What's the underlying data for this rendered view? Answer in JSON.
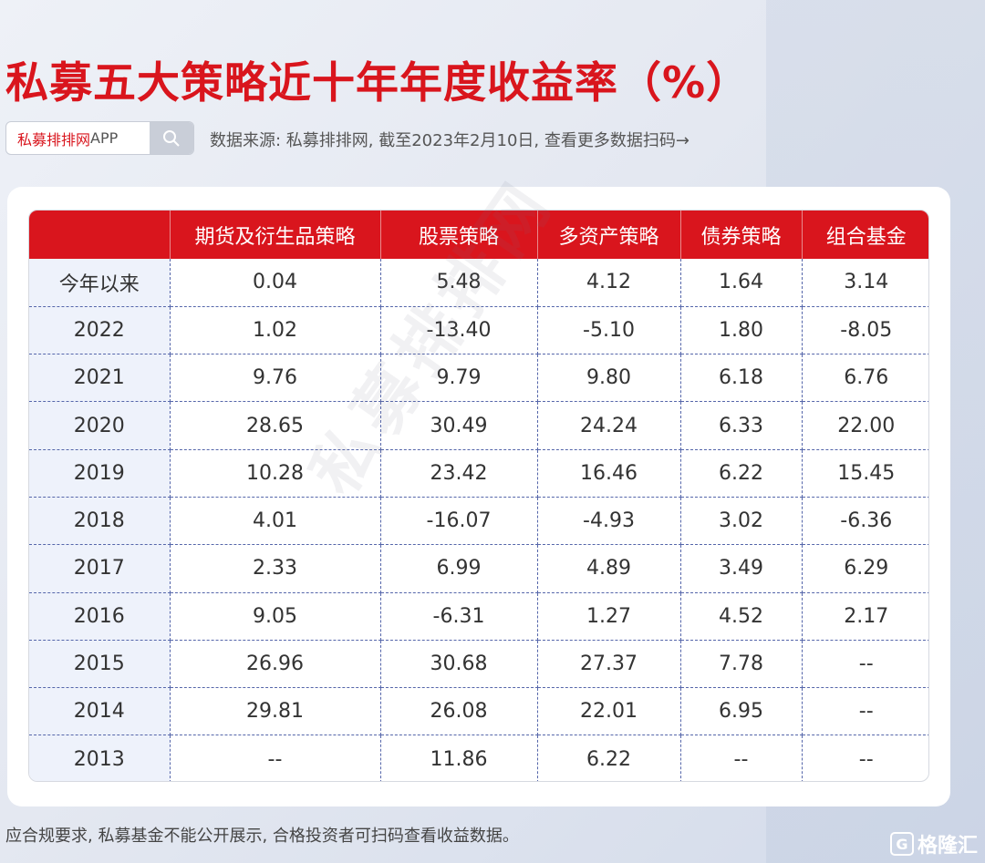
{
  "title": "私募五大策略近十年年度收益率（%）",
  "search": {
    "brand": "私募排排网",
    "app": "APP"
  },
  "source_text": "数据来源: 私募排排网, 截至2023年2月10日, 查看更多数据扫码→",
  "table": {
    "headers": [
      "",
      "期货及衍生品策略",
      "股票策略",
      "多资产策略",
      "债券策略",
      "组合基金"
    ],
    "rows": [
      [
        "今年以来",
        "0.04",
        "5.48",
        "4.12",
        "1.64",
        "3.14"
      ],
      [
        "2022",
        "1.02",
        "-13.40",
        "-5.10",
        "1.80",
        "-8.05"
      ],
      [
        "2021",
        "9.76",
        "9.79",
        "9.80",
        "6.18",
        "6.76"
      ],
      [
        "2020",
        "28.65",
        "30.49",
        "24.24",
        "6.33",
        "22.00"
      ],
      [
        "2019",
        "10.28",
        "23.42",
        "16.46",
        "6.22",
        "15.45"
      ],
      [
        "2018",
        "4.01",
        "-16.07",
        "-4.93",
        "3.02",
        "-6.36"
      ],
      [
        "2017",
        "2.33",
        "6.99",
        "4.89",
        "3.49",
        "6.29"
      ],
      [
        "2016",
        "9.05",
        "-6.31",
        "1.27",
        "4.52",
        "2.17"
      ],
      [
        "2015",
        "26.96",
        "30.68",
        "27.37",
        "7.78",
        "--"
      ],
      [
        "2014",
        "29.81",
        "26.08",
        "22.01",
        "6.95",
        "--"
      ],
      [
        "2013",
        "--",
        "11.86",
        "6.22",
        "--",
        "--"
      ]
    ]
  },
  "watermark": "私募排排网",
  "footnote": "应合规要求, 私募基金不能公开展示, 合格投资者可扫码查看收益数据。",
  "logo_text": "格隆汇",
  "colors": {
    "accent": "#d9151d",
    "header_text": "#ffffff",
    "year_col_bg": "#eef2fb"
  },
  "icons": {
    "search": "search-icon",
    "logo": "gelonghui-logo-icon"
  }
}
